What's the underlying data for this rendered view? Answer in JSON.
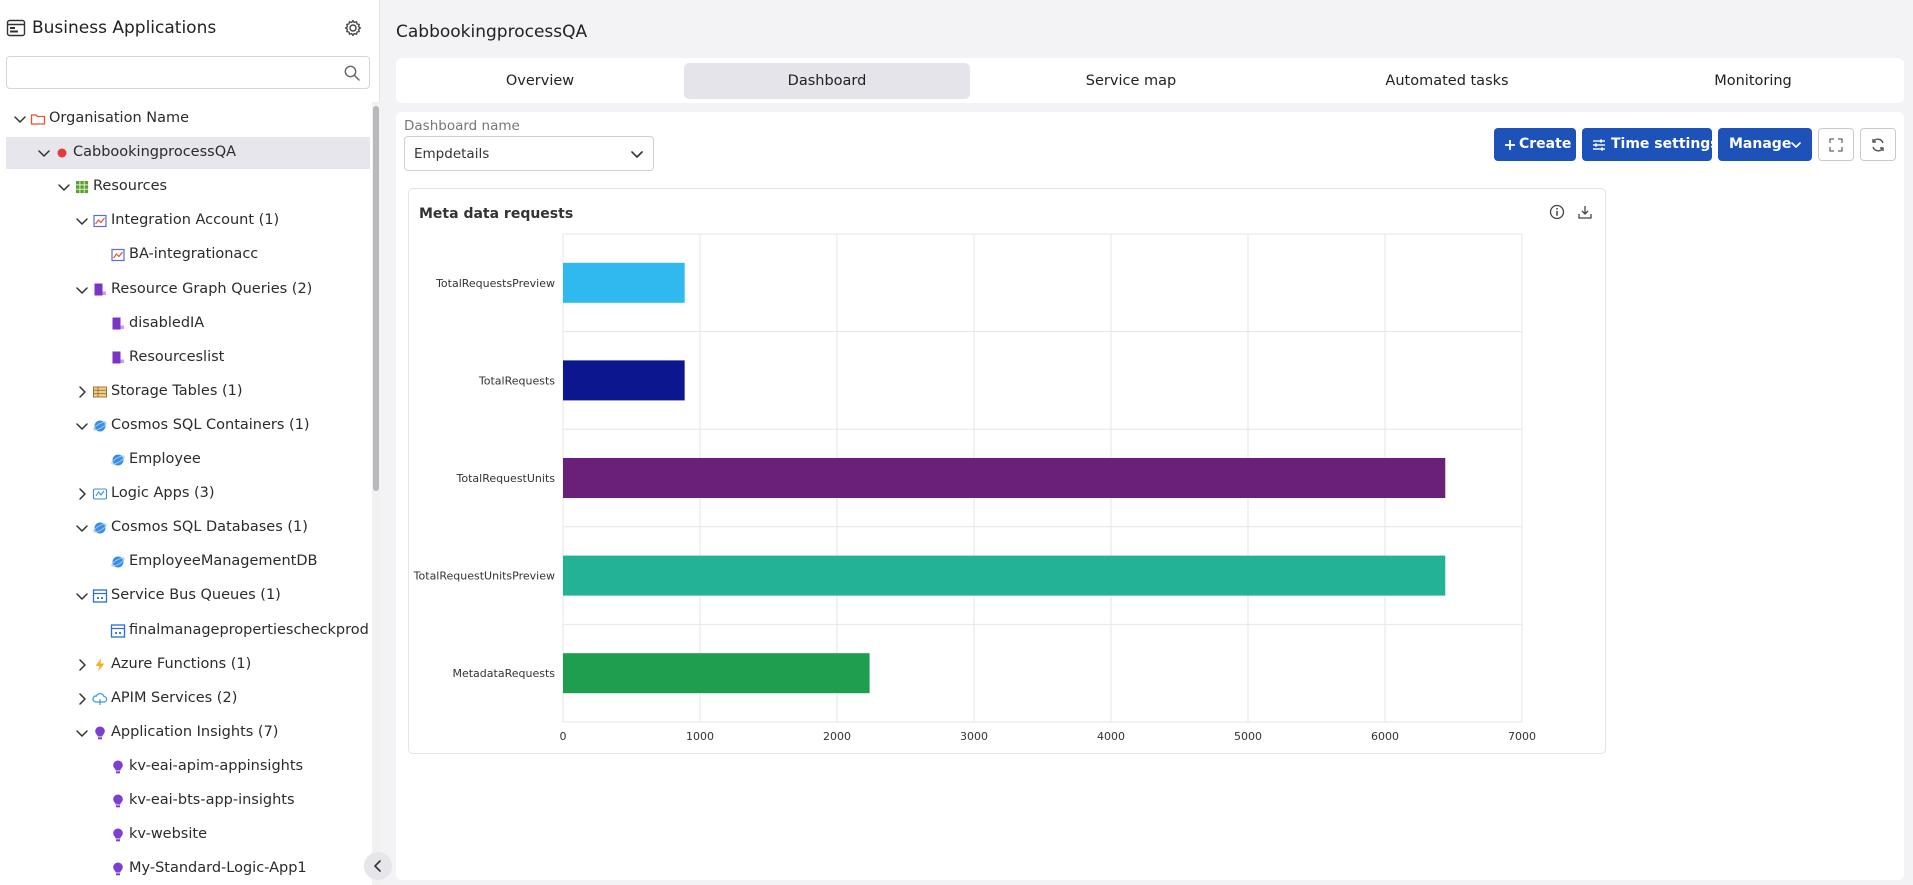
{
  "app": {
    "title": "Business Applications"
  },
  "search": {
    "placeholder": ""
  },
  "tree": [
    {
      "label": "Organisation Name",
      "level": 0,
      "chevron": "down",
      "icon": "folder-icon",
      "selected": false
    },
    {
      "label": "CabbookingprocessQA",
      "level": 1,
      "chevron": "down",
      "icon": "status-dot-icon",
      "selected": true
    },
    {
      "label": "Resources",
      "level": 2,
      "chevron": "down",
      "icon": "grid-icon",
      "selected": false
    },
    {
      "label": "Integration Account (1)",
      "level": 3,
      "chevron": "down",
      "icon": "integration-account-icon",
      "selected": false
    },
    {
      "label": "BA-integrationacc",
      "level": 4,
      "chevron": "",
      "icon": "integration-account-icon",
      "selected": false
    },
    {
      "label": "Resource Graph Queries (2)",
      "level": 3,
      "chevron": "down",
      "icon": "resource-graph-icon",
      "selected": false
    },
    {
      "label": "disabledIA",
      "level": 4,
      "chevron": "",
      "icon": "resource-graph-icon",
      "selected": false
    },
    {
      "label": "Resourceslist",
      "level": 4,
      "chevron": "",
      "icon": "resource-graph-icon",
      "selected": false
    },
    {
      "label": "Storage Tables (1)",
      "level": 3,
      "chevron": "right",
      "icon": "storage-table-icon",
      "selected": false
    },
    {
      "label": "Cosmos SQL Containers (1)",
      "level": 3,
      "chevron": "down",
      "icon": "cosmos-icon",
      "selected": false
    },
    {
      "label": "Employee",
      "level": 4,
      "chevron": "",
      "icon": "cosmos-icon",
      "selected": false
    },
    {
      "label": "Logic Apps (3)",
      "level": 3,
      "chevron": "right",
      "icon": "logic-app-icon",
      "selected": false
    },
    {
      "label": "Cosmos SQL Databases (1)",
      "level": 3,
      "chevron": "down",
      "icon": "cosmos-icon",
      "selected": false
    },
    {
      "label": "EmployeeManagementDB",
      "level": 4,
      "chevron": "",
      "icon": "cosmos-icon",
      "selected": false
    },
    {
      "label": "Service Bus Queues (1)",
      "level": 3,
      "chevron": "down",
      "icon": "service-bus-icon",
      "selected": false
    },
    {
      "label": "finalmanagepropertiescheckprod",
      "level": 4,
      "chevron": "",
      "icon": "service-bus-icon",
      "selected": false
    },
    {
      "label": "Azure Functions (1)",
      "level": 3,
      "chevron": "right",
      "icon": "azure-function-icon",
      "selected": false
    },
    {
      "label": "APIM Services (2)",
      "level": 3,
      "chevron": "right",
      "icon": "apim-icon",
      "selected": false
    },
    {
      "label": "Application Insights (7)",
      "level": 3,
      "chevron": "down",
      "icon": "app-insights-icon",
      "selected": false
    },
    {
      "label": "kv-eai-apim-appinsights",
      "level": 4,
      "chevron": "",
      "icon": "app-insights-icon",
      "selected": false
    },
    {
      "label": "kv-eai-bts-app-insights",
      "level": 4,
      "chevron": "",
      "icon": "app-insights-icon",
      "selected": false
    },
    {
      "label": "kv-website",
      "level": 4,
      "chevron": "",
      "icon": "app-insights-icon",
      "selected": false
    },
    {
      "label": "My-Standard-Logic-App1",
      "level": 4,
      "chevron": "",
      "icon": "app-insights-icon",
      "selected": false
    }
  ],
  "page": {
    "title": "CabbookingprocessQA"
  },
  "tabs": [
    {
      "label": "Overview",
      "active": false
    },
    {
      "label": "Dashboard",
      "active": true
    },
    {
      "label": "Service map",
      "active": false
    },
    {
      "label": "Automated tasks",
      "active": false
    },
    {
      "label": "Monitoring",
      "active": false
    }
  ],
  "dashboard": {
    "name_label": "Dashboard name",
    "selected": "Empdetails"
  },
  "toolbar": {
    "create_label": "Create",
    "time_settings_label": "Time settings",
    "manage_label": "Manage"
  },
  "colors": {
    "primary_button": "#1d52b8",
    "status_dot": "#e23b3b",
    "selected_row": "#e6e6ec"
  },
  "chart_data": {
    "type": "bar",
    "orientation": "horizontal",
    "title": "Meta data requests",
    "categories": [
      "TotalRequestsPreview",
      "TotalRequests",
      "TotalRequestUnits",
      "TotalRequestUnitsPreview",
      "MetadataRequests"
    ],
    "values": [
      888,
      888,
      6440,
      6440,
      2238
    ],
    "colors": [
      "#2fb9ef",
      "#0b168f",
      "#6a1f78",
      "#23b296",
      "#1f9e4f"
    ],
    "xlim": [
      0,
      7000
    ],
    "xticks": [
      0,
      1000,
      2000,
      3000,
      4000,
      5000,
      6000,
      7000
    ],
    "grid": true,
    "xlabel": "",
    "ylabel": ""
  }
}
